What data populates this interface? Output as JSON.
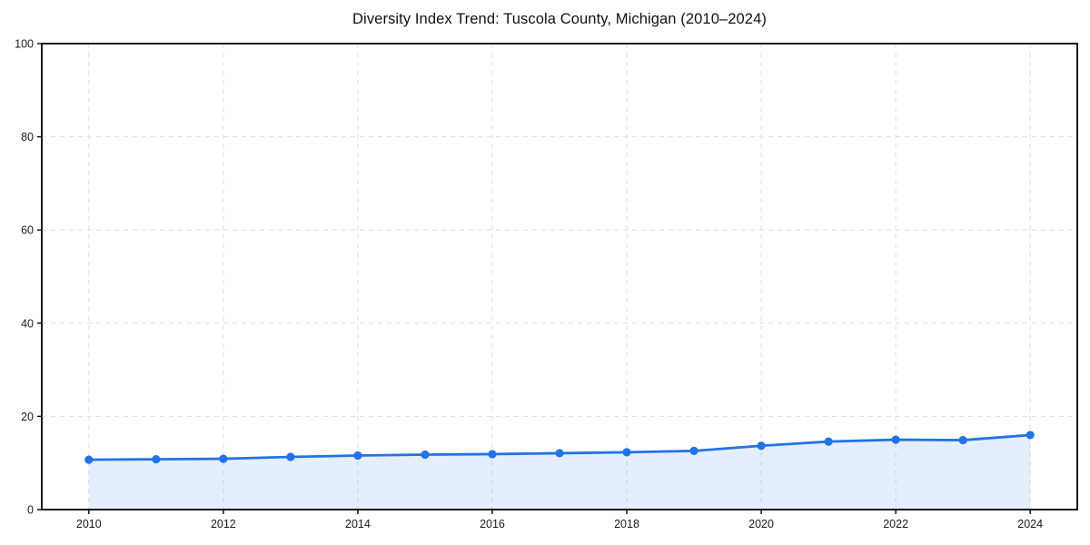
{
  "figure": {
    "background": "#ffffff"
  },
  "chart_data": {
    "type": "line",
    "title": "Diversity Index Trend: Tuscola County, Michigan (2010–2024)",
    "xlabel": "",
    "ylabel": "",
    "x": [
      2010,
      2011,
      2012,
      2013,
      2014,
      2015,
      2016,
      2017,
      2018,
      2019,
      2020,
      2021,
      2022,
      2023,
      2024
    ],
    "values": [
      10.7,
      10.8,
      10.9,
      11.3,
      11.6,
      11.8,
      11.9,
      12.1,
      12.3,
      12.6,
      13.7,
      14.6,
      15.0,
      14.9,
      16.0
    ],
    "series_name": "Diversity Index",
    "xlim": [
      2009.3,
      2024.7
    ],
    "ylim": [
      0,
      100
    ],
    "xticks": [
      2010,
      2012,
      2014,
      2016,
      2018,
      2020,
      2022,
      2024
    ],
    "yticks": [
      0,
      20,
      40,
      60,
      80,
      100
    ],
    "grid": true,
    "grid_style": "dashed",
    "grid_color": "#dedede",
    "legend_position": "none",
    "line_color": "#2273e6",
    "marker_color": "#2273e6",
    "marker_shape": "circle",
    "area_fill": true,
    "area_color": "rgba(34,115,230,0.12)",
    "axis_color": "#000000",
    "tick_label_color": "#1a1a1a"
  }
}
